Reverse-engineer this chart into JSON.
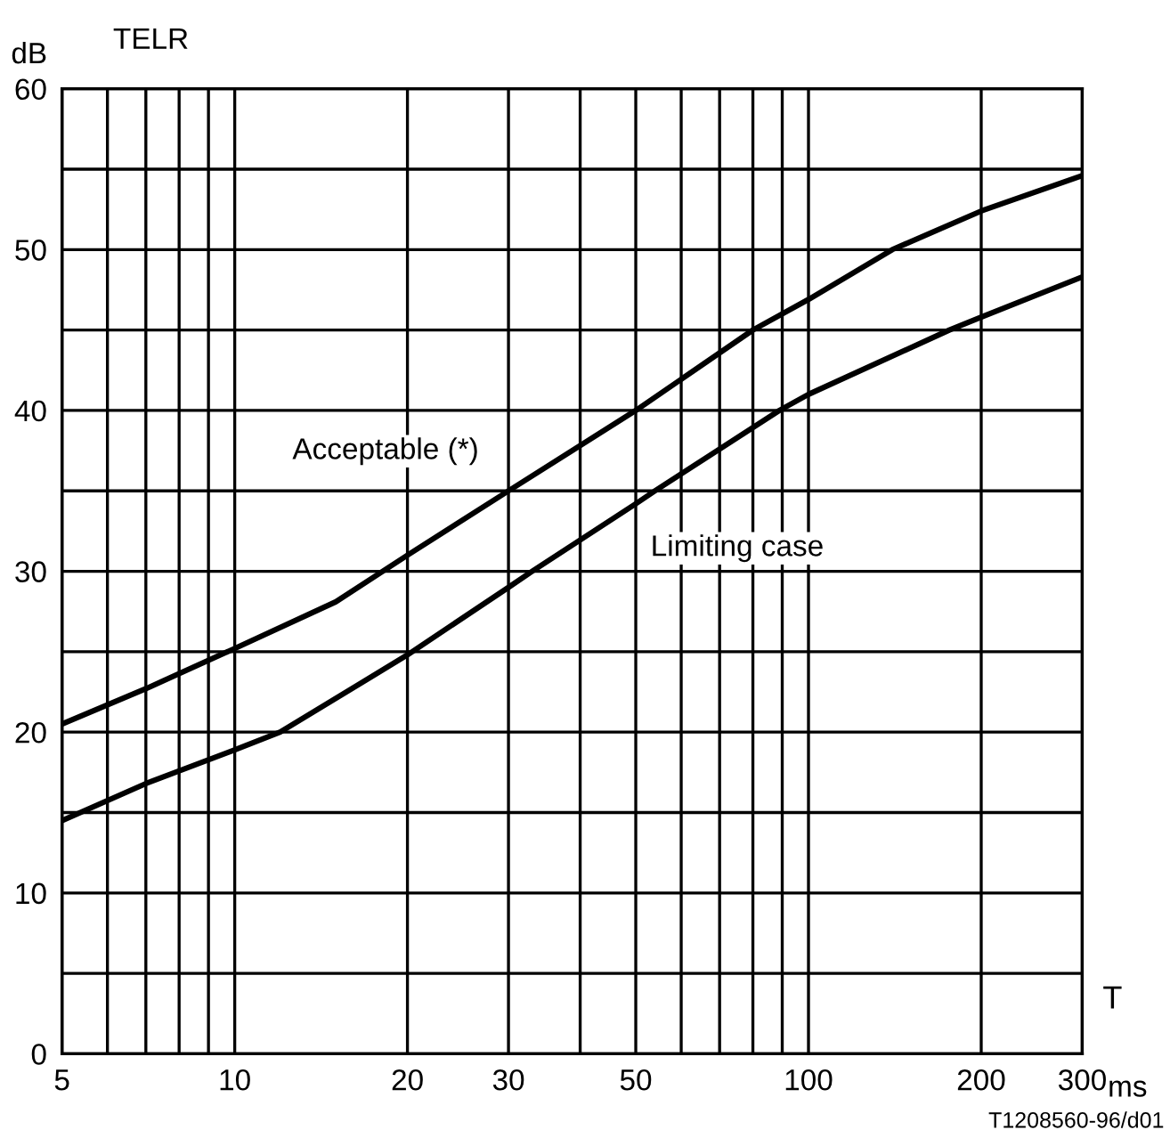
{
  "chart_data": {
    "type": "line",
    "title": "TELR",
    "ylabel": "dB",
    "xlabel": "T",
    "log": "x",
    "xlim": [
      5,
      300
    ],
    "ylim": [
      0,
      60
    ],
    "xticks": [
      5,
      {
        "value": 6,
        "label": null
      },
      {
        "value": 7,
        "label": null
      },
      {
        "value": 8,
        "label": null
      },
      {
        "value": 9,
        "label": null
      },
      10,
      20,
      30,
      {
        "value": 40,
        "label": null
      },
      50,
      {
        "value": 60,
        "label": null
      },
      {
        "value": 70,
        "label": null
      },
      {
        "value": 80,
        "label": null
      },
      {
        "value": 90,
        "label": null
      },
      100,
      200,
      300
    ],
    "yticks": [
      0,
      {
        "value": 5,
        "label": null
      },
      10,
      {
        "value": 15,
        "label": null
      },
      20,
      {
        "value": 25,
        "label": null
      },
      30,
      {
        "value": 35,
        "label": null
      },
      40,
      {
        "value": 45,
        "label": null
      },
      50,
      {
        "value": 55,
        "label": null
      },
      60
    ],
    "grid": true,
    "legend": false,
    "marker": "none",
    "line_style": "solid",
    "series": [
      {
        "name": "Acceptable (*)",
        "color": "#000000",
        "x": [
          5,
          7,
          10,
          15,
          20,
          30,
          50,
          80,
          100,
          140,
          200,
          300
        ],
        "values": [
          20.5,
          22.7,
          25.2,
          28.1,
          31,
          35,
          40,
          45,
          46.9,
          50,
          52.4,
          54.6
        ]
      },
      {
        "name": "Limiting case",
        "color": "#000000",
        "x": [
          5,
          7,
          10,
          12,
          20,
          30,
          33,
          50,
          54,
          89,
          100,
          176,
          200,
          300
        ],
        "values": [
          14.5,
          16.8,
          18.9,
          20,
          24.8,
          29,
          30,
          34.2,
          35,
          40,
          41,
          45,
          45.8,
          48.3
        ]
      }
    ],
    "annotations": [
      "ms",
      "T1208560-96/d01"
    ]
  }
}
